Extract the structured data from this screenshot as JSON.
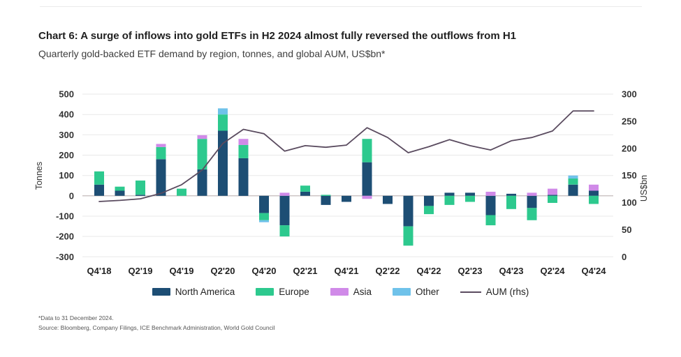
{
  "header": {
    "title": "Chart 6: A surge of inflows into gold ETFs in H2 2024 almost fully reversed the outflows from H1",
    "subtitle": "Quarterly gold-backed ETF demand by region, tonnes, and global AUM, US$bn*"
  },
  "footer": {
    "note": "*Data to 31 December 2024.",
    "source": "Source: Bloomberg, Company Filings, ICE Benchmark Administration, World Gold Council"
  },
  "legend": {
    "items": [
      {
        "label": "North America",
        "color": "#1d4e74",
        "kind": "swatch"
      },
      {
        "label": "Europe",
        "color": "#2dc98e",
        "kind": "swatch"
      },
      {
        "label": "Asia",
        "color": "#d08ae8",
        "kind": "swatch"
      },
      {
        "label": "Other",
        "color": "#6fc2ea",
        "kind": "swatch"
      },
      {
        "label": "AUM (rhs)",
        "color": "#5a4b5f",
        "kind": "line"
      }
    ]
  },
  "chart_data": {
    "type": "bar",
    "subtype": "stacked-bar-with-line-overlay",
    "title": "Quarterly gold-backed ETF demand by region, tonnes, and global AUM, US$bn",
    "categories": [
      "Q4'18",
      "Q1'19",
      "Q2'19",
      "Q3'19",
      "Q4'19",
      "Q1'20",
      "Q2'20",
      "Q3'20",
      "Q4'20",
      "Q1'21",
      "Q2'21",
      "Q3'21",
      "Q4'21",
      "Q1'22",
      "Q2'22",
      "Q3'22",
      "Q4'22",
      "Q1'23",
      "Q2'23",
      "Q3'23",
      "Q4'23",
      "Q1'24",
      "Q2'24",
      "Q3'24",
      "Q4'24"
    ],
    "x_tick_labels": [
      "Q4'18",
      "Q2'19",
      "Q4'19",
      "Q2'20",
      "Q4'20",
      "Q2'21",
      "Q4'21",
      "Q2'22",
      "Q4'22",
      "Q2'23",
      "Q4'23",
      "Q2'24",
      "Q4'24"
    ],
    "x_tick_every": 2,
    "series": [
      {
        "name": "North America",
        "color": "#1d4e74",
        "values": [
          55,
          25,
          5,
          180,
          0,
          130,
          320,
          185,
          -85,
          -145,
          20,
          -45,
          -30,
          165,
          -40,
          -150,
          -50,
          15,
          15,
          -95,
          10,
          -60,
          5,
          55,
          25
        ]
      },
      {
        "name": "Europe",
        "color": "#2dc98e",
        "values": [
          65,
          20,
          70,
          60,
          35,
          150,
          80,
          65,
          -35,
          -55,
          30,
          5,
          0,
          115,
          0,
          -95,
          -40,
          -45,
          -30,
          -50,
          -65,
          -60,
          -35,
          30,
          -40
        ]
      },
      {
        "name": "Asia",
        "color": "#d08ae8",
        "values": [
          0,
          0,
          0,
          15,
          0,
          18,
          0,
          30,
          0,
          15,
          0,
          0,
          0,
          -15,
          0,
          0,
          0,
          0,
          0,
          20,
          0,
          15,
          30,
          0,
          30
        ]
      },
      {
        "name": "Other",
        "color": "#6fc2ea",
        "values": [
          0,
          0,
          0,
          0,
          0,
          0,
          30,
          0,
          -10,
          0,
          0,
          0,
          0,
          0,
          0,
          0,
          0,
          0,
          0,
          0,
          0,
          0,
          0,
          15,
          0
        ]
      }
    ],
    "line_series": {
      "name": "AUM (rhs)",
      "color": "#5a4b5f",
      "axis": "right",
      "values": [
        102,
        104,
        107,
        117,
        133,
        160,
        209,
        235,
        227,
        195,
        205,
        202,
        206,
        238,
        220,
        192,
        203,
        216,
        205,
        197,
        214,
        220,
        232,
        269,
        269
      ]
    },
    "left_axis": {
      "label": "Tonnes",
      "min": -300,
      "max": 500,
      "ticks": [
        500,
        400,
        300,
        200,
        100,
        0,
        -100,
        -200,
        -300
      ]
    },
    "right_axis": {
      "label": "US$bn",
      "min": 0,
      "max": 300,
      "ticks": [
        300,
        250,
        200,
        150,
        100,
        50,
        0
      ]
    },
    "grid": "horizontal",
    "legend_position": "bottom"
  }
}
